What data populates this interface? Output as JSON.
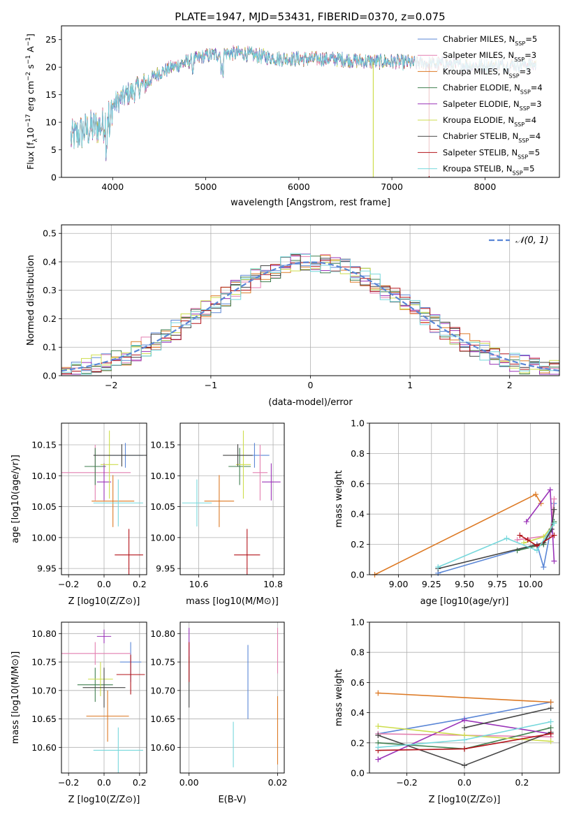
{
  "figure": {
    "title": "PLATE=1947, MJD=53431, FIBERID=0370, z=0.075"
  },
  "series": [
    {
      "name": "Chabrier MILES",
      "nssp": "5",
      "color": "#5a86d6"
    },
    {
      "name": "Salpeter MILES",
      "nssp": "3",
      "color": "#e37fb0"
    },
    {
      "name": "Kroupa MILES",
      "nssp": "3",
      "color": "#dd7a25"
    },
    {
      "name": "Chabrier ELODIE",
      "nssp": "4",
      "color": "#3f7f4f"
    },
    {
      "name": "Salpeter ELODIE",
      "nssp": "3",
      "color": "#9a33b8"
    },
    {
      "name": "Kroupa ELODIE",
      "nssp": "4",
      "color": "#cddd4c"
    },
    {
      "name": "Chabrier STELIB",
      "nssp": "4",
      "color": "#454545"
    },
    {
      "name": "Salpeter STELIB",
      "nssp": "5",
      "color": "#b3131a"
    },
    {
      "name": "Kroupa STELIB",
      "nssp": "5",
      "color": "#77d8dc"
    }
  ],
  "chart_data": [
    {
      "id": "spectrum",
      "type": "line",
      "title": "PLATE=1947, MJD=53431, FIBERID=0370, z=0.075",
      "xlabel": "wavelength [Angstrom, rest frame]",
      "ylabel": "Flux [f_λ 10^-17 erg cm^-2 s^-1 A^-1]",
      "xlim": [
        3450,
        8800
      ],
      "ylim": [
        0,
        27.5
      ],
      "xticks": [
        4000,
        5000,
        6000,
        7000,
        8000
      ],
      "yticks": [
        0,
        5,
        10,
        15,
        20,
        25
      ],
      "legend": "upper right",
      "continuum": {
        "x": [
          3550,
          3700,
          3900,
          4000,
          4150,
          4350,
          4500,
          4800,
          5000,
          5200,
          5400,
          5600,
          5800,
          6000,
          6200,
          6400,
          6600,
          6800,
          7000,
          7200,
          7400,
          7600,
          7800,
          8000,
          8200,
          8400,
          8550
        ],
        "y": [
          7,
          8.5,
          9.5,
          13,
          15,
          17,
          19,
          21,
          22,
          22.5,
          22.5,
          22,
          21.5,
          21.5,
          21.5,
          21.5,
          21.2,
          21,
          21,
          20.8,
          20.6,
          20.5,
          20.3,
          20.2,
          20.3,
          20.5,
          20.5
        ]
      },
      "spikes": [
        {
          "x": 6800,
          "y": 0,
          "series": "Kroupa ELODIE"
        },
        {
          "x": 7400,
          "y": 0,
          "series": "Salpeter STELIB"
        }
      ]
    },
    {
      "id": "residual-histogram",
      "type": "step",
      "xlabel": "(data-model)/error",
      "ylabel": "Normed distribution",
      "xlim": [
        -2.5,
        2.5
      ],
      "ylim": [
        0,
        0.53
      ],
      "xticks": [
        -2,
        -1,
        0,
        1,
        2
      ],
      "yticks": [
        0.0,
        0.1,
        0.2,
        0.3,
        0.4,
        0.5
      ],
      "bin_width": 0.1,
      "bin_start": -2.5,
      "reference_curve": {
        "name": "𝒩(0, 1)",
        "color": "#5a86d6",
        "style": "dashed"
      },
      "legend": "upper right"
    },
    {
      "id": "age-vs-Z",
      "type": "errorbar",
      "xlabel": "Z [log10(Z/Z⊙)]",
      "ylabel": "age [log10(age/yr)]",
      "xlim": [
        -0.24,
        0.24
      ],
      "ylim": [
        9.94,
        10.185
      ],
      "xticks": [
        -0.2,
        0.0,
        0.2
      ],
      "yticks": [
        9.95,
        10.0,
        10.05,
        10.1,
        10.15
      ],
      "points": [
        {
          "series": "Chabrier MILES",
          "x": 0.12,
          "xerr": 0.1,
          "y": 10.133,
          "yerr": 0.02
        },
        {
          "series": "Salpeter MILES",
          "x": -0.05,
          "xerr": 0.2,
          "y": 10.105,
          "yerr": 0.045
        },
        {
          "series": "Kroupa MILES",
          "x": 0.05,
          "xerr": 0.12,
          "y": 10.059,
          "yerr": 0.042
        },
        {
          "series": "Chabrier ELODIE",
          "x": -0.05,
          "xerr": 0.06,
          "y": 10.115,
          "yerr": 0.03
        },
        {
          "series": "Salpeter ELODIE",
          "x": 0.0,
          "xerr": 0.04,
          "y": 10.09,
          "yerr": 0.03
        },
        {
          "series": "Kroupa ELODIE",
          "x": 0.03,
          "xerr": 0.05,
          "y": 10.118,
          "yerr": 0.055
        },
        {
          "series": "Chabrier STELIB",
          "x": 0.1,
          "xerr": 0.16,
          "y": 10.133,
          "yerr": 0.018
        },
        {
          "series": "Salpeter STELIB",
          "x": 0.14,
          "xerr": 0.08,
          "y": 9.972,
          "yerr": 0.042
        },
        {
          "series": "Kroupa STELIB",
          "x": 0.08,
          "xerr": 0.14,
          "y": 10.056,
          "yerr": 0.038
        }
      ]
    },
    {
      "id": "age-vs-mass",
      "type": "errorbar",
      "xlabel": "mass [log10(M/M⊙)]",
      "ylabel": "",
      "xlim": [
        10.55,
        10.83
      ],
      "ylim": [
        9.94,
        10.185
      ],
      "xticks": [
        10.6,
        10.8
      ],
      "yticks": [
        9.95,
        10.0,
        10.05,
        10.1,
        10.15
      ],
      "points": [
        {
          "series": "Chabrier MILES",
          "x": 10.75,
          "xerr": 0.04,
          "y": 10.133,
          "yerr": 0.02
        },
        {
          "series": "Salpeter MILES",
          "x": 10.765,
          "xerr": 0.02,
          "y": 10.105,
          "yerr": 0.045
        },
        {
          "series": "Kroupa MILES",
          "x": 10.655,
          "xerr": 0.04,
          "y": 10.059,
          "yerr": 0.042
        },
        {
          "series": "Chabrier ELODIE",
          "x": 10.71,
          "xerr": 0.03,
          "y": 10.115,
          "yerr": 0.03
        },
        {
          "series": "Salpeter ELODIE",
          "x": 10.795,
          "xerr": 0.025,
          "y": 10.09,
          "yerr": 0.03
        },
        {
          "series": "Kroupa ELODIE",
          "x": 10.72,
          "xerr": 0.02,
          "y": 10.118,
          "yerr": 0.055
        },
        {
          "series": "Chabrier STELIB",
          "x": 10.705,
          "xerr": 0.04,
          "y": 10.133,
          "yerr": 0.018
        },
        {
          "series": "Salpeter STELIB",
          "x": 10.73,
          "xerr": 0.035,
          "y": 9.972,
          "yerr": 0.042
        },
        {
          "series": "Kroupa STELIB",
          "x": 10.595,
          "xerr": 0.04,
          "y": 10.056,
          "yerr": 0.038
        }
      ]
    },
    {
      "id": "mass-weight-vs-age",
      "type": "line",
      "xlabel": "age [log10(age/yr)]",
      "ylabel": "mass weight",
      "xlim": [
        8.78,
        10.22
      ],
      "ylim": [
        0,
        1
      ],
      "xticks": [
        9.0,
        9.25,
        9.5,
        9.75,
        10.0
      ],
      "yticks": [
        0.0,
        0.2,
        0.4,
        0.6,
        0.8,
        1.0
      ],
      "lines": [
        {
          "series": "Chabrier MILES",
          "x": [
            9.3,
            10.05,
            10.1,
            10.15,
            10.18
          ],
          "y": [
            0.01,
            0.2,
            0.05,
            0.28,
            0.47
          ]
        },
        {
          "series": "Salpeter MILES",
          "x": [
            9.9,
            10.15,
            10.18
          ],
          "y": [
            0.23,
            0.26,
            0.5
          ]
        },
        {
          "series": "Kroupa MILES",
          "x": [
            8.82,
            10.04,
            10.08
          ],
          "y": [
            0.0,
            0.53,
            0.47
          ]
        },
        {
          "series": "Chabrier ELODIE",
          "x": [
            9.9,
            10.1,
            10.16,
            10.18
          ],
          "y": [
            0.16,
            0.2,
            0.3,
            0.35
          ]
        },
        {
          "series": "Salpeter ELODIE",
          "x": [
            9.97,
            10.15,
            10.18
          ],
          "y": [
            0.35,
            0.56,
            0.09
          ]
        },
        {
          "series": "Kroupa ELODIE",
          "x": [
            9.95,
            10.1,
            10.18
          ],
          "y": [
            0.21,
            0.25,
            0.34
          ]
        },
        {
          "series": "Chabrier STELIB",
          "x": [
            9.3,
            10.1,
            10.16,
            10.18
          ],
          "y": [
            0.04,
            0.21,
            0.3,
            0.43
          ]
        },
        {
          "series": "Salpeter STELIB",
          "x": [
            9.92,
            9.98,
            10.05,
            10.18
          ],
          "y": [
            0.26,
            0.23,
            0.19,
            0.26
          ]
        },
        {
          "series": "Kroupa STELIB",
          "x": [
            9.3,
            9.82,
            10.05,
            10.18
          ],
          "y": [
            0.05,
            0.24,
            0.16,
            0.34
          ]
        }
      ]
    },
    {
      "id": "mass-vs-Z",
      "type": "errorbar",
      "xlabel": "Z [log10(Z/Z⊙)]",
      "ylabel": "mass [log10(M/M⊙)]",
      "xlim": [
        -0.24,
        0.24
      ],
      "ylim": [
        10.555,
        10.82
      ],
      "xticks": [
        -0.2,
        0.0,
        0.2
      ],
      "yticks": [
        10.6,
        10.65,
        10.7,
        10.75,
        10.8
      ],
      "points": [
        {
          "series": "Chabrier MILES",
          "x": 0.15,
          "xerr": 0.06,
          "y": 10.75,
          "yerr": 0.035
        },
        {
          "series": "Salpeter MILES",
          "x": -0.05,
          "xerr": 0.2,
          "y": 10.765,
          "yerr": 0.02
        },
        {
          "series": "Kroupa MILES",
          "x": 0.02,
          "xerr": 0.12,
          "y": 10.655,
          "yerr": 0.045
        },
        {
          "series": "Chabrier ELODIE",
          "x": -0.05,
          "xerr": 0.1,
          "y": 10.71,
          "yerr": 0.03
        },
        {
          "series": "Salpeter ELODIE",
          "x": 0.0,
          "xerr": 0.04,
          "y": 10.795,
          "yerr": 0.012
        },
        {
          "series": "Kroupa ELODIE",
          "x": -0.02,
          "xerr": 0.07,
          "y": 10.72,
          "yerr": 0.03
        },
        {
          "series": "Chabrier STELIB",
          "x": 0.0,
          "xerr": 0.12,
          "y": 10.705,
          "yerr": 0.035
        },
        {
          "series": "Salpeter STELIB",
          "x": 0.15,
          "xerr": 0.08,
          "y": 10.728,
          "yerr": 0.035
        },
        {
          "series": "Kroupa STELIB",
          "x": 0.08,
          "xerr": 0.14,
          "y": 10.595,
          "yerr": 0.04
        }
      ]
    },
    {
      "id": "mass-vs-EBV",
      "type": "errorbar",
      "xlabel": "E(B-V)",
      "ylabel": "",
      "xlim": [
        -0.002,
        0.0215
      ],
      "ylim": [
        10.555,
        10.82
      ],
      "xticks": [
        0.0,
        0.02
      ],
      "xtick_labels": [
        "0.00",
        "0.02"
      ],
      "yticks": [
        10.6,
        10.65,
        10.7,
        10.75,
        10.8
      ],
      "points": [
        {
          "series": "Chabrier MILES",
          "x": 0.0133,
          "xerr": 0,
          "y": 10.715,
          "yerr": 0.065
        },
        {
          "series": "Salpeter MILES",
          "x": 0.02,
          "xerr": 0,
          "y": 10.77,
          "yerr": 0.04
        },
        {
          "series": "Kroupa MILES",
          "x": 0.02,
          "xerr": 0,
          "y": 10.63,
          "yerr": 0.06
        },
        {
          "series": "Salpeter ELODIE",
          "x": 0.0,
          "xerr": 0,
          "y": 10.785,
          "yerr": 0.025
        },
        {
          "series": "Chabrier STELIB",
          "x": 0.0,
          "xerr": 0,
          "y": 10.715,
          "yerr": 0.045
        },
        {
          "series": "Salpeter STELIB",
          "x": 0.0,
          "xerr": 0,
          "y": 10.75,
          "yerr": 0.035
        },
        {
          "series": "Kroupa STELIB",
          "x": 0.01,
          "xerr": 0,
          "y": 10.605,
          "yerr": 0.04
        }
      ]
    },
    {
      "id": "mass-weight-vs-Z",
      "type": "line",
      "xlabel": "Z [log10(Z/Z⊙)]",
      "ylabel": "mass weight",
      "xlim": [
        -0.33,
        0.33
      ],
      "ylim": [
        0,
        1
      ],
      "xticks": [
        -0.2,
        0.0,
        0.2
      ],
      "yticks": [
        0.0,
        0.2,
        0.4,
        0.6,
        0.8,
        1.0
      ],
      "lines": [
        {
          "series": "Chabrier MILES",
          "x": [
            -0.3,
            0.0,
            0.3
          ],
          "y": [
            0.26,
            0.36,
            0.47
          ]
        },
        {
          "series": "Salpeter MILES",
          "x": [
            -0.3,
            0.0,
            0.3
          ],
          "y": [
            0.26,
            0.25,
            0.24
          ]
        },
        {
          "series": "Kroupa MILES",
          "x": [
            -0.3,
            0.3
          ],
          "y": [
            0.53,
            0.47
          ]
        },
        {
          "series": "Chabrier ELODIE",
          "x": [
            -0.3,
            0.0,
            0.3
          ],
          "y": [
            0.2,
            0.16,
            0.3
          ]
        },
        {
          "series": "Salpeter ELODIE",
          "x": [
            -0.3,
            0.0,
            0.3
          ],
          "y": [
            0.09,
            0.35,
            0.26
          ]
        },
        {
          "series": "Kroupa ELODIE",
          "x": [
            -0.3,
            0.0,
            0.3
          ],
          "y": [
            0.31,
            0.25,
            0.21
          ]
        },
        {
          "series": "Chabrier STELIB",
          "x": [
            -0.3,
            0.0,
            0.3
          ],
          "y": [
            0.25,
            0.05,
            0.27
          ]
        },
        {
          "series": "Chabrier STELIB",
          "x": [
            0.0,
            0.3
          ],
          "y": [
            0.3,
            0.43
          ]
        },
        {
          "series": "Salpeter STELIB",
          "x": [
            -0.3,
            0.0,
            0.3
          ],
          "y": [
            0.15,
            0.16,
            0.26
          ]
        },
        {
          "series": "Kroupa STELIB",
          "x": [
            -0.3,
            0.0,
            0.3
          ],
          "y": [
            0.17,
            0.22,
            0.34
          ]
        }
      ]
    }
  ]
}
